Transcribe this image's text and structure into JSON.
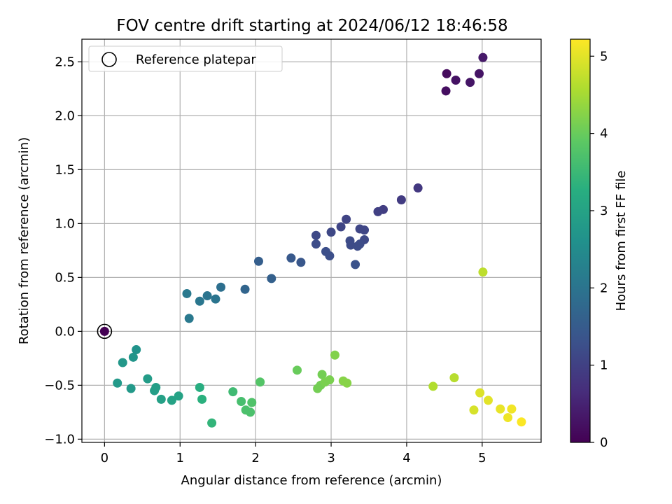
{
  "chart_data": {
    "type": "scatter",
    "title": "FOV centre drift starting at 2024/06/12 18:46:58",
    "xlabel": "Angular distance from reference (arcmin)",
    "ylabel": "Rotation from reference (arcmin)",
    "xlim": [
      -0.3,
      5.78
    ],
    "ylim": [
      -1.03,
      2.71
    ],
    "xticks": [
      "0",
      "1",
      "2",
      "3",
      "4",
      "5"
    ],
    "yticks": [
      "−1.0",
      "−0.5",
      "0.0",
      "0.5",
      "1.0",
      "1.5",
      "2.0",
      "2.5"
    ],
    "grid": true,
    "legend": {
      "position": "top-left",
      "entries": [
        "Reference platepar"
      ]
    },
    "colorbar": {
      "label": "Hours from first FF file",
      "range": [
        0,
        5.22
      ],
      "ticks": [
        "0",
        "1",
        "2",
        "3",
        "4",
        "5"
      ],
      "colormap": "viridis"
    },
    "reference_point": {
      "x": 0,
      "y": 0
    },
    "points": [
      {
        "x": 4.53,
        "y": 2.39,
        "c": 0.15
      },
      {
        "x": 4.52,
        "y": 2.23,
        "c": 0.2
      },
      {
        "x": 4.65,
        "y": 2.33,
        "c": 0.25
      },
      {
        "x": 4.84,
        "y": 2.31,
        "c": 0.3
      },
      {
        "x": 4.96,
        "y": 2.39,
        "c": 0.28
      },
      {
        "x": 5.01,
        "y": 2.54,
        "c": 0.35
      },
      {
        "x": 4.15,
        "y": 1.33,
        "c": 0.85
      },
      {
        "x": 3.93,
        "y": 1.22,
        "c": 0.9
      },
      {
        "x": 3.69,
        "y": 1.13,
        "c": 0.95
      },
      {
        "x": 3.62,
        "y": 1.11,
        "c": 0.98
      },
      {
        "x": 3.2,
        "y": 1.04,
        "c": 1.05
      },
      {
        "x": 3.13,
        "y": 0.97,
        "c": 1.08
      },
      {
        "x": 3.38,
        "y": 0.95,
        "c": 1.1
      },
      {
        "x": 3.44,
        "y": 0.94,
        "c": 1.1
      },
      {
        "x": 3.0,
        "y": 0.92,
        "c": 1.12
      },
      {
        "x": 2.8,
        "y": 0.89,
        "c": 1.15
      },
      {
        "x": 3.44,
        "y": 0.85,
        "c": 1.15
      },
      {
        "x": 3.25,
        "y": 0.84,
        "c": 1.18
      },
      {
        "x": 3.26,
        "y": 0.8,
        "c": 1.18
      },
      {
        "x": 3.35,
        "y": 0.79,
        "c": 1.2
      },
      {
        "x": 3.38,
        "y": 0.81,
        "c": 1.2
      },
      {
        "x": 2.8,
        "y": 0.81,
        "c": 1.22
      },
      {
        "x": 2.93,
        "y": 0.74,
        "c": 1.25
      },
      {
        "x": 2.98,
        "y": 0.7,
        "c": 1.25
      },
      {
        "x": 3.32,
        "y": 0.62,
        "c": 1.3
      },
      {
        "x": 2.47,
        "y": 0.68,
        "c": 1.45
      },
      {
        "x": 2.6,
        "y": 0.64,
        "c": 1.4
      },
      {
        "x": 2.04,
        "y": 0.65,
        "c": 1.55
      },
      {
        "x": 2.21,
        "y": 0.49,
        "c": 1.6
      },
      {
        "x": 1.86,
        "y": 0.39,
        "c": 1.7
      },
      {
        "x": 1.54,
        "y": 0.41,
        "c": 1.9
      },
      {
        "x": 1.36,
        "y": 0.33,
        "c": 2.0
      },
      {
        "x": 1.47,
        "y": 0.3,
        "c": 2.0
      },
      {
        "x": 1.26,
        "y": 0.28,
        "c": 2.05
      },
      {
        "x": 1.09,
        "y": 0.35,
        "c": 2.1
      },
      {
        "x": 1.12,
        "y": 0.12,
        "c": 2.1
      },
      {
        "x": 0.42,
        "y": -0.17,
        "c": 2.65
      },
      {
        "x": 0.38,
        "y": -0.24,
        "c": 2.7
      },
      {
        "x": 0.24,
        "y": -0.29,
        "c": 2.75
      },
      {
        "x": 0.17,
        "y": -0.48,
        "c": 2.8
      },
      {
        "x": 0.35,
        "y": -0.53,
        "c": 2.8
      },
      {
        "x": 0.57,
        "y": -0.44,
        "c": 2.85
      },
      {
        "x": 0.68,
        "y": -0.52,
        "c": 2.9
      },
      {
        "x": 0.66,
        "y": -0.55,
        "c": 2.9
      },
      {
        "x": 0.75,
        "y": -0.63,
        "c": 2.95
      },
      {
        "x": 0.89,
        "y": -0.64,
        "c": 3.0
      },
      {
        "x": 0.98,
        "y": -0.6,
        "c": 3.0
      },
      {
        "x": 1.26,
        "y": -0.52,
        "c": 3.25
      },
      {
        "x": 1.29,
        "y": -0.63,
        "c": 3.3
      },
      {
        "x": 1.42,
        "y": -0.85,
        "c": 3.4
      },
      {
        "x": 1.7,
        "y": -0.56,
        "c": 3.55
      },
      {
        "x": 1.81,
        "y": -0.65,
        "c": 3.65
      },
      {
        "x": 1.87,
        "y": -0.73,
        "c": 3.7
      },
      {
        "x": 1.93,
        "y": -0.75,
        "c": 3.7
      },
      {
        "x": 1.95,
        "y": -0.66,
        "c": 3.75
      },
      {
        "x": 2.06,
        "y": -0.47,
        "c": 3.8
      },
      {
        "x": 2.55,
        "y": -0.36,
        "c": 4.0
      },
      {
        "x": 2.82,
        "y": -0.53,
        "c": 4.1
      },
      {
        "x": 2.86,
        "y": -0.5,
        "c": 4.1
      },
      {
        "x": 2.88,
        "y": -0.4,
        "c": 4.1
      },
      {
        "x": 2.92,
        "y": -0.47,
        "c": 4.15
      },
      {
        "x": 2.98,
        "y": -0.45,
        "c": 4.15
      },
      {
        "x": 3.05,
        "y": -0.22,
        "c": 4.2
      },
      {
        "x": 3.16,
        "y": -0.46,
        "c": 4.25
      },
      {
        "x": 3.21,
        "y": -0.48,
        "c": 4.25
      },
      {
        "x": 4.35,
        "y": -0.51,
        "c": 4.6
      },
      {
        "x": 4.63,
        "y": -0.43,
        "c": 4.65
      },
      {
        "x": 5.01,
        "y": 0.55,
        "c": 4.7
      },
      {
        "x": 4.89,
        "y": -0.73,
        "c": 4.9
      },
      {
        "x": 4.97,
        "y": -0.57,
        "c": 4.95
      },
      {
        "x": 5.08,
        "y": -0.64,
        "c": 5.0
      },
      {
        "x": 5.24,
        "y": -0.72,
        "c": 5.05
      },
      {
        "x": 5.34,
        "y": -0.8,
        "c": 5.1
      },
      {
        "x": 5.39,
        "y": -0.72,
        "c": 5.12
      },
      {
        "x": 5.52,
        "y": -0.84,
        "c": 5.2
      }
    ]
  }
}
